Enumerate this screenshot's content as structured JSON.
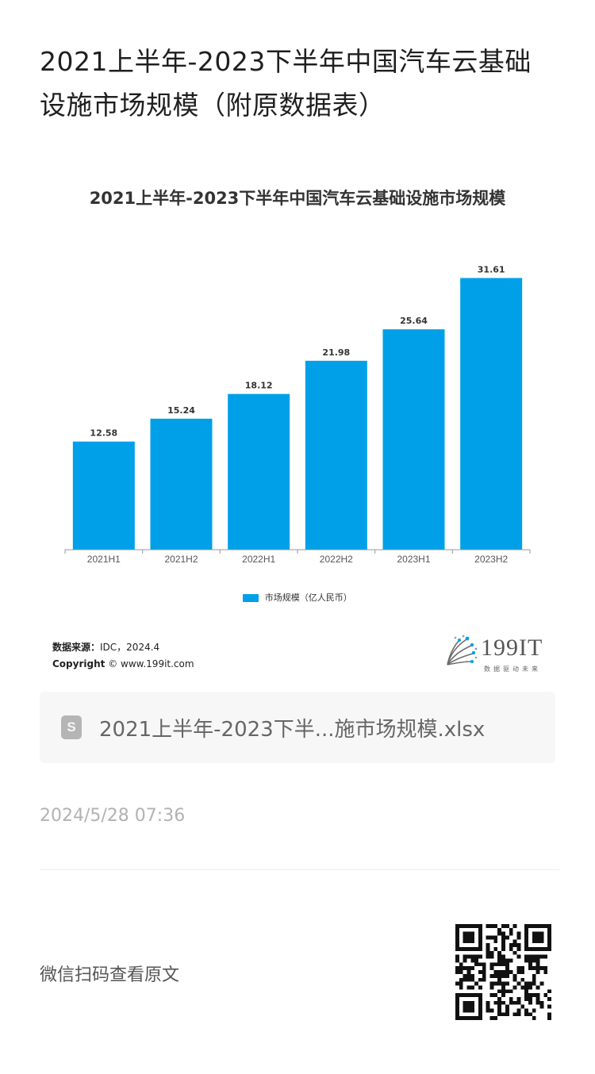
{
  "article": {
    "title_line1": "2021上半年-2023下半年中国汽车云基础",
    "title_line2": "设施市场规模（附原数据表）",
    "date": "2024/5/28 07:36"
  },
  "chart_image": {
    "legend_label": "市场规模（亿人民币）",
    "source_label": "数据来源：",
    "source_value": "IDC，2024.4",
    "copyright_label": "Copyright",
    "copyright_value": "© www.199it.com",
    "brand_name": "199IT",
    "brand_slogan": "数据驱动未来"
  },
  "chart_data": {
    "type": "bar",
    "title": "2021上半年-2023下半年中国汽车云基础设施市场规模",
    "categories": [
      "2021H1",
      "2021H2",
      "2022H1",
      "2022H2",
      "2023H1",
      "2023H2"
    ],
    "series": [
      {
        "name": "市场规模（亿人民币）",
        "values": [
          12.58,
          15.24,
          18.12,
          21.98,
          25.64,
          31.61
        ]
      }
    ],
    "ylim": [
      0,
      33.5
    ],
    "grid": false,
    "legend_position": "bottom",
    "bar_color": "#00a0e9"
  },
  "attachment": {
    "icon": "spreadsheet-file-icon",
    "icon_glyph": "S",
    "file_name": "2021上半年-2023下半...施市场规模.xlsx"
  },
  "footer": {
    "read_original": "微信扫码查看原文",
    "qr_icon": "qr-code-icon"
  }
}
